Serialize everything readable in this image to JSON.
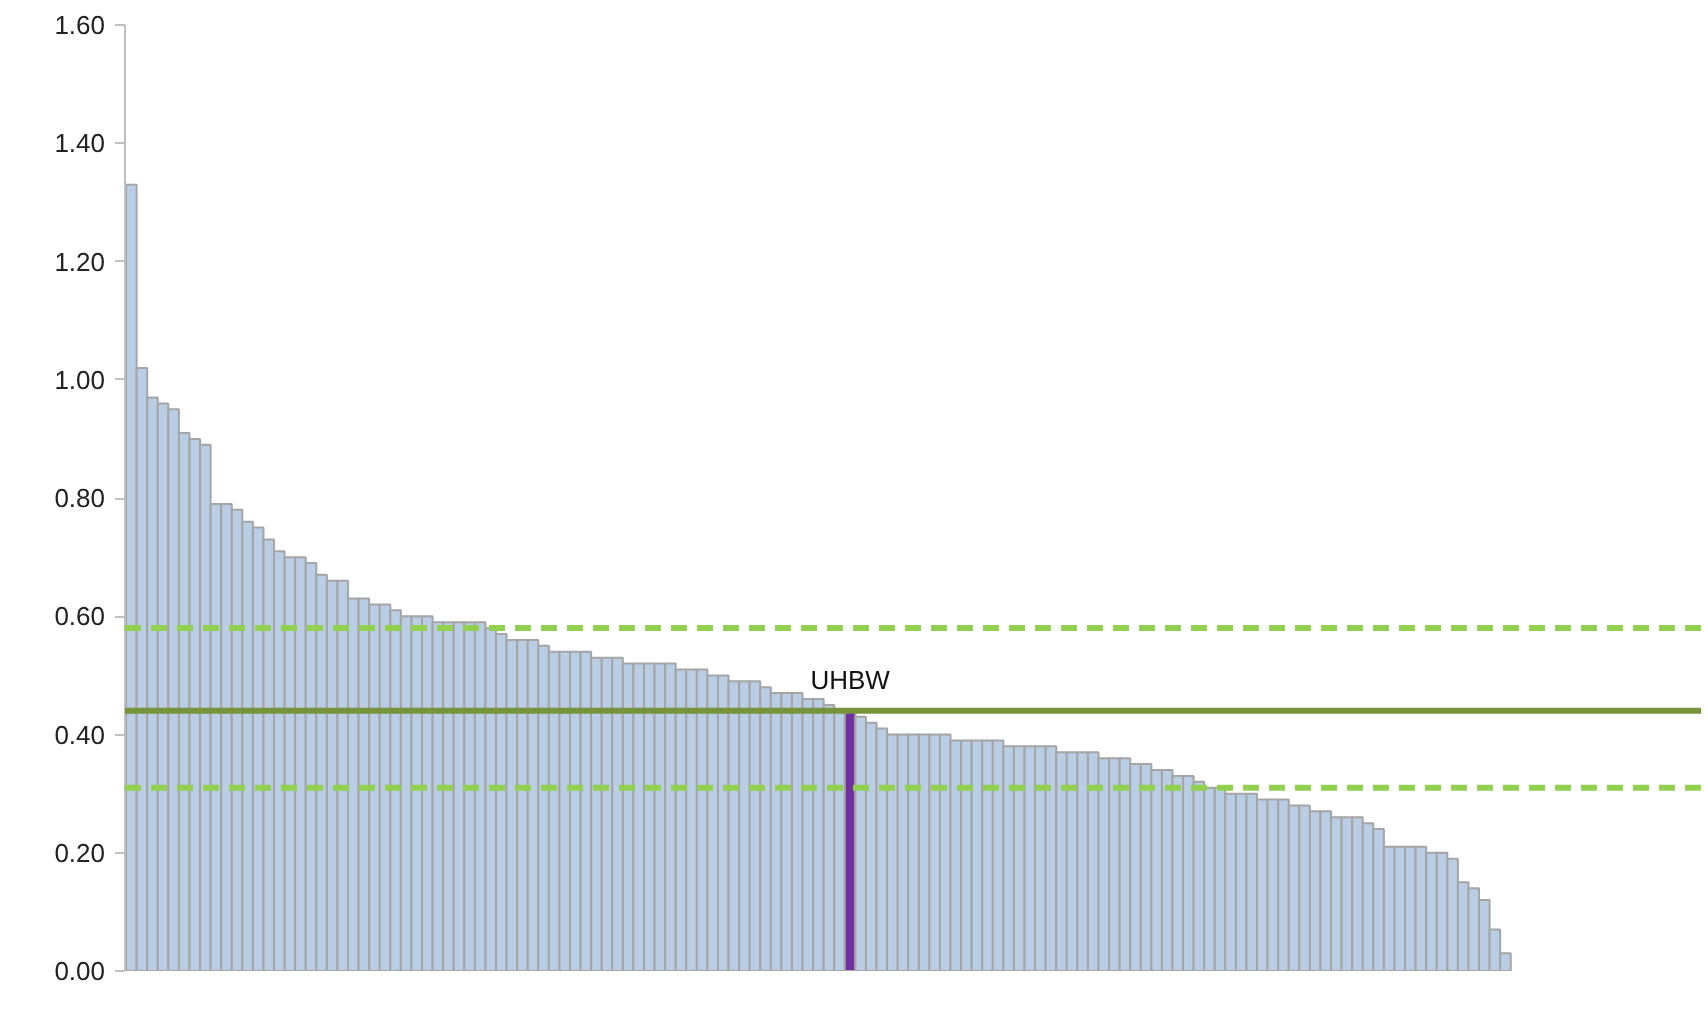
{
  "chart_data": {
    "type": "bar",
    "categories": [
      null,
      null,
      null,
      null,
      null,
      null,
      null,
      null,
      null,
      null,
      null,
      null,
      null,
      null,
      null,
      null,
      null,
      null,
      null,
      null,
      null,
      null,
      null,
      null,
      null,
      null,
      null,
      null,
      null,
      null,
      null,
      null,
      null,
      null,
      null,
      null,
      null,
      null,
      null,
      null,
      null,
      null,
      null,
      null,
      null,
      null,
      null,
      null,
      null,
      null,
      null,
      null,
      null,
      null,
      null,
      null,
      null,
      null,
      null,
      null,
      null,
      null,
      null,
      null,
      null,
      null,
      null,
      null,
      null,
      null,
      null,
      null,
      null,
      null,
      null,
      null,
      null,
      null,
      null,
      null,
      null,
      null,
      null,
      null,
      null,
      null,
      null,
      null,
      null,
      null,
      null,
      null,
      null,
      null,
      null,
      null,
      null,
      null,
      null,
      null,
      null,
      null,
      null,
      null,
      null,
      null,
      null,
      null,
      null,
      null,
      null,
      null,
      null,
      null,
      null,
      null,
      null,
      null,
      null,
      null,
      null,
      null,
      null,
      null,
      null,
      null,
      null,
      null,
      null,
      null,
      null
    ],
    "values": [
      1.33,
      1.02,
      0.97,
      0.96,
      0.95,
      0.91,
      0.9,
      0.89,
      0.79,
      0.79,
      0.78,
      0.76,
      0.75,
      0.73,
      0.71,
      0.7,
      0.7,
      0.69,
      0.67,
      0.66,
      0.66,
      0.63,
      0.63,
      0.62,
      0.62,
      0.61,
      0.6,
      0.6,
      0.6,
      0.59,
      0.59,
      0.59,
      0.59,
      0.59,
      0.58,
      0.57,
      0.56,
      0.56,
      0.56,
      0.55,
      0.54,
      0.54,
      0.54,
      0.54,
      0.53,
      0.53,
      0.53,
      0.52,
      0.52,
      0.52,
      0.52,
      0.52,
      0.51,
      0.51,
      0.51,
      0.5,
      0.5,
      0.49,
      0.49,
      0.49,
      0.48,
      0.47,
      0.47,
      0.47,
      0.46,
      0.46,
      0.45,
      0.44,
      0.44,
      0.43,
      0.42,
      0.41,
      0.4,
      0.4,
      0.4,
      0.4,
      0.4,
      0.4,
      0.39,
      0.39,
      0.39,
      0.39,
      0.39,
      0.38,
      0.38,
      0.38,
      0.38,
      0.38,
      0.37,
      0.37,
      0.37,
      0.37,
      0.36,
      0.36,
      0.36,
      0.35,
      0.35,
      0.34,
      0.34,
      0.33,
      0.33,
      0.32,
      0.31,
      0.31,
      0.3,
      0.3,
      0.3,
      0.29,
      0.29,
      0.29,
      0.28,
      0.28,
      0.27,
      0.27,
      0.26,
      0.26,
      0.26,
      0.25,
      0.24,
      0.21,
      0.21,
      0.21,
      0.21,
      0.2,
      0.2,
      0.19,
      0.15,
      0.14,
      0.12,
      0.07,
      0.03
    ],
    "colors": [
      "#b9cde5",
      "#b9cde5",
      "#b9cde5",
      "#b9cde5",
      "#b9cde5",
      "#b9cde5",
      "#b9cde5",
      "#b9cde5",
      "#b9cde5",
      "#b9cde5",
      "#b9cde5",
      "#b9cde5",
      "#b9cde5",
      "#b9cde5",
      "#b9cde5",
      "#b9cde5",
      "#b9cde5",
      "#b9cde5",
      "#b9cde5",
      "#b9cde5",
      "#b9cde5",
      "#b9cde5",
      "#b9cde5",
      "#b9cde5",
      "#b9cde5",
      "#b9cde5",
      "#b9cde5",
      "#b9cde5",
      "#b9cde5",
      "#b9cde5",
      "#b9cde5",
      "#b9cde5",
      "#b9cde5",
      "#b9cde5",
      "#b9cde5",
      "#b9cde5",
      "#b9cde5",
      "#b9cde5",
      "#b9cde5",
      "#b9cde5",
      "#b9cde5",
      "#b9cde5",
      "#b9cde5",
      "#b9cde5",
      "#b9cde5",
      "#b9cde5",
      "#b9cde5",
      "#b9cde5",
      "#b9cde5",
      "#b9cde5",
      "#b9cde5",
      "#b9cde5",
      "#b9cde5",
      "#b9cde5",
      "#b9cde5",
      "#b9cde5",
      "#b9cde5",
      "#b9cde5",
      "#b9cde5",
      "#b9cde5",
      "#b9cde5",
      "#b9cde5",
      "#b9cde5",
      "#b9cde5",
      "#b9cde5",
      "#b9cde5",
      "#b9cde5",
      "#b9cde5",
      "#7030a0",
      "#b9cde5",
      "#b9cde5",
      "#b9cde5",
      "#b9cde5",
      "#b9cde5",
      "#b9cde5",
      "#b9cde5",
      "#b9cde5",
      "#b9cde5",
      "#b9cde5",
      "#b9cde5",
      "#b9cde5",
      "#b9cde5",
      "#b9cde5",
      "#b9cde5",
      "#b9cde5",
      "#b9cde5",
      "#b9cde5",
      "#b9cde5",
      "#b9cde5",
      "#b9cde5",
      "#b9cde5",
      "#b9cde5",
      "#b9cde5",
      "#b9cde5",
      "#b9cde5",
      "#b9cde5",
      "#b9cde5",
      "#b9cde5",
      "#b9cde5",
      "#b9cde5",
      "#b9cde5",
      "#b9cde5",
      "#b9cde5",
      "#b9cde5",
      "#b9cde5",
      "#b9cde5",
      "#b9cde5",
      "#b9cde5",
      "#b9cde5",
      "#b9cde5",
      "#b9cde5",
      "#b9cde5",
      "#b9cde5",
      "#b9cde5",
      "#b9cde5",
      "#b9cde5",
      "#b9cde5",
      "#b9cde5",
      "#b9cde5",
      "#b9cde5",
      "#b9cde5",
      "#b9cde5",
      "#b9cde5",
      "#b9cde5",
      "#b9cde5",
      "#b9cde5",
      "#b9cde5",
      "#b9cde5",
      "#b9cde5",
      "#b9cde5",
      "#b9cde5"
    ],
    "ylim": [
      0,
      1.6
    ],
    "yticks": [
      {
        "value": 0,
        "label": "0.00"
      },
      {
        "value": 0.2,
        "label": "0.20"
      },
      {
        "value": 0.4,
        "label": "0.40"
      },
      {
        "value": 0.6,
        "label": "0.60"
      },
      {
        "value": 0.8,
        "label": "0.80"
      },
      {
        "value": 1.0,
        "label": "1.00"
      },
      {
        "value": 1.2,
        "label": "1.20"
      },
      {
        "value": 1.4,
        "label": "1.40"
      },
      {
        "value": 1.6,
        "label": "1.60"
      }
    ],
    "tick_labels": "y",
    "grid": false,
    "ref_lines": [
      {
        "axis": "y",
        "value": 0.58,
        "color": "#92d050",
        "line_style": "dashed"
      },
      {
        "axis": "y",
        "value": 0.44,
        "color": "#77933c",
        "line_style": "solid"
      },
      {
        "axis": "y",
        "value": 0.31,
        "color": "#92d050",
        "line_style": "dashed"
      }
    ],
    "annotations": [
      {
        "text": "UHBW",
        "y": 0.44
      }
    ]
  }
}
